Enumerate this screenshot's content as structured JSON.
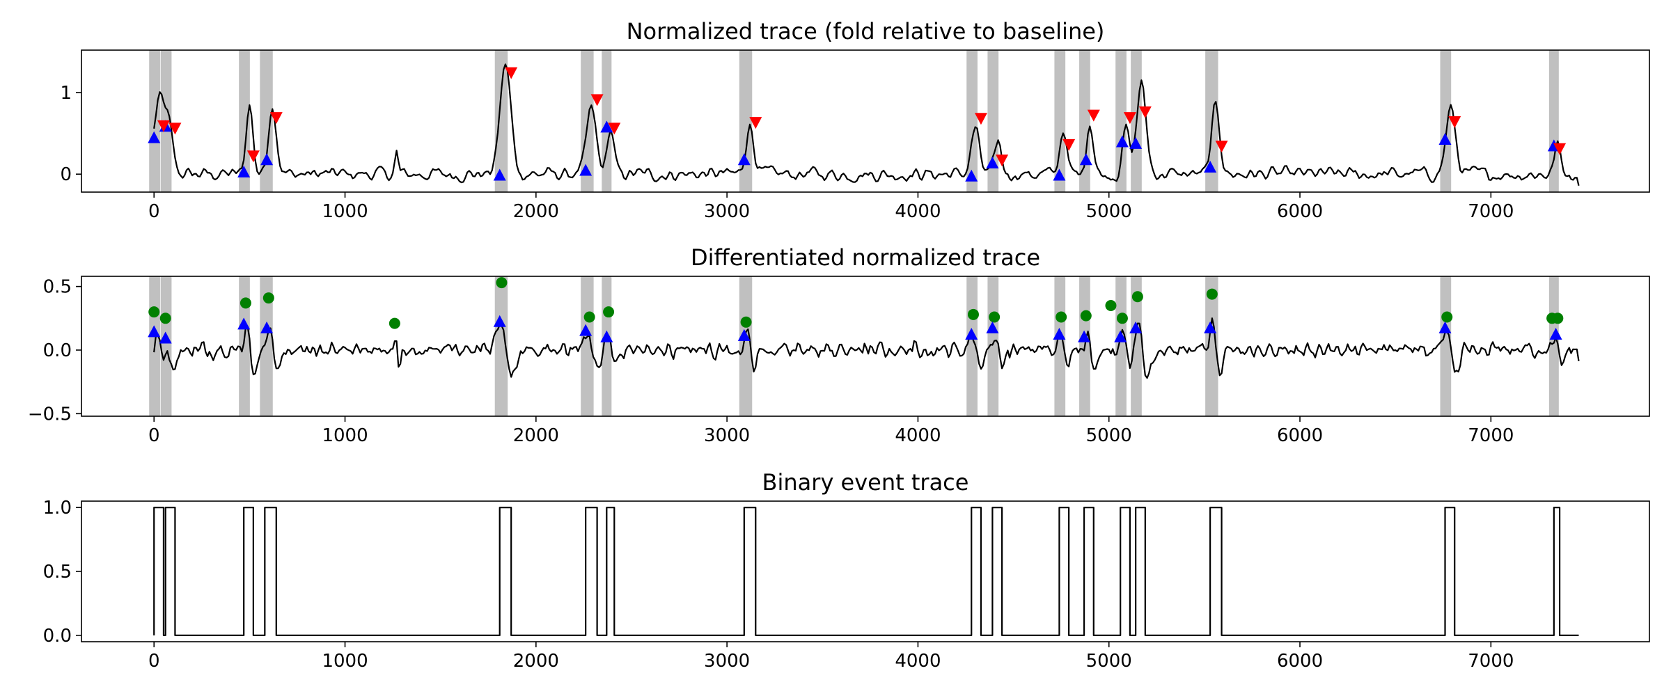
{
  "chart_data": [
    {
      "type": "line",
      "title": "Normalized trace (fold relative to baseline)",
      "xlim": [
        -380,
        7830
      ],
      "ylim": [
        -0.22,
        1.52
      ],
      "xticks": [
        0,
        1000,
        2000,
        3000,
        4000,
        5000,
        6000,
        7000
      ],
      "yticks": [
        0,
        1
      ],
      "xticklabels": [
        "0",
        "1000",
        "2000",
        "3000",
        "4000",
        "5000",
        "6000",
        "7000"
      ],
      "yticklabels": [
        "0",
        "1"
      ],
      "colors": {
        "line": "#000000",
        "band": "#c0c0c0",
        "onset": "#0000ff",
        "offset": "#ff0000"
      },
      "event_windows": [
        [
          0,
          50
        ],
        [
          60,
          110
        ],
        [
          470,
          520
        ],
        [
          580,
          640
        ],
        [
          1810,
          1870
        ],
        [
          2260,
          2320
        ],
        [
          2370,
          2410
        ],
        [
          3090,
          3150
        ],
        [
          4280,
          4330
        ],
        [
          4390,
          4440
        ],
        [
          4740,
          4790
        ],
        [
          4870,
          4920
        ],
        [
          5060,
          5110
        ],
        [
          5140,
          5190
        ],
        [
          5530,
          5590
        ],
        [
          6760,
          6810
        ],
        [
          7330,
          7360
        ]
      ],
      "series": [
        {
          "marker": "triangle-up",
          "color": "#0000ff",
          "points": [
            [
              0,
              0.44
            ],
            [
              60,
              0.58
            ],
            [
              470,
              0.02
            ],
            [
              590,
              0.17
            ],
            [
              1810,
              -0.02
            ],
            [
              2260,
              0.04
            ],
            [
              2370,
              0.57
            ],
            [
              3090,
              0.17
            ],
            [
              4280,
              -0.03
            ],
            [
              4390,
              0.13
            ],
            [
              4740,
              -0.02
            ],
            [
              4880,
              0.17
            ],
            [
              5070,
              0.39
            ],
            [
              5140,
              0.37
            ],
            [
              5530,
              0.08
            ],
            [
              6760,
              0.42
            ],
            [
              7330,
              0.34
            ]
          ]
        },
        {
          "marker": "triangle-down",
          "color": "#ff0000",
          "points": [
            [
              50,
              0.6
            ],
            [
              110,
              0.57
            ],
            [
              520,
              0.23
            ],
            [
              640,
              0.7
            ],
            [
              1870,
              1.25
            ],
            [
              2320,
              0.92
            ],
            [
              2410,
              0.57
            ],
            [
              3150,
              0.64
            ],
            [
              4330,
              0.69
            ],
            [
              4440,
              0.18
            ],
            [
              4790,
              0.37
            ],
            [
              4920,
              0.73
            ],
            [
              5110,
              0.7
            ],
            [
              5190,
              0.77
            ],
            [
              5590,
              0.35
            ],
            [
              6810,
              0.65
            ],
            [
              7360,
              0.32
            ]
          ]
        }
      ]
    },
    {
      "type": "line",
      "title": "Differentiated normalized trace",
      "xlim": [
        -380,
        7830
      ],
      "ylim": [
        -0.52,
        0.58
      ],
      "xticks": [
        0,
        1000,
        2000,
        3000,
        4000,
        5000,
        6000,
        7000
      ],
      "yticks": [
        -0.5,
        0.0,
        0.5
      ],
      "xticklabels": [
        "0",
        "1000",
        "2000",
        "3000",
        "4000",
        "5000",
        "6000",
        "7000"
      ],
      "yticklabels": [
        "−0.5",
        "0.0",
        "0.5"
      ],
      "colors": {
        "line": "#000000",
        "band": "#c0c0c0",
        "peak": "#008000",
        "onset": "#0000ff"
      },
      "event_windows": [
        [
          0,
          50
        ],
        [
          60,
          110
        ],
        [
          470,
          520
        ],
        [
          580,
          640
        ],
        [
          1810,
          1870
        ],
        [
          2260,
          2320
        ],
        [
          2370,
          2410
        ],
        [
          3090,
          3150
        ],
        [
          4280,
          4330
        ],
        [
          4390,
          4440
        ],
        [
          4740,
          4790
        ],
        [
          4870,
          4920
        ],
        [
          5060,
          5110
        ],
        [
          5140,
          5190
        ],
        [
          5530,
          5590
        ],
        [
          6760,
          6810
        ],
        [
          7330,
          7360
        ]
      ],
      "series": [
        {
          "marker": "circle",
          "color": "#008000",
          "points": [
            [
              0,
              0.3
            ],
            [
              60,
              0.25
            ],
            [
              480,
              0.37
            ],
            [
              600,
              0.41
            ],
            [
              1260,
              0.21
            ],
            [
              1820,
              0.53
            ],
            [
              2280,
              0.26
            ],
            [
              2380,
              0.3
            ],
            [
              3100,
              0.22
            ],
            [
              4290,
              0.28
            ],
            [
              4400,
              0.26
            ],
            [
              4750,
              0.26
            ],
            [
              4880,
              0.27
            ],
            [
              5010,
              0.35
            ],
            [
              5070,
              0.25
            ],
            [
              5150,
              0.42
            ],
            [
              5540,
              0.44
            ],
            [
              6770,
              0.26
            ],
            [
              7320,
              0.25
            ],
            [
              7350,
              0.25
            ]
          ]
        },
        {
          "marker": "triangle-up",
          "color": "#0000ff",
          "points": [
            [
              0,
              0.14
            ],
            [
              60,
              0.09
            ],
            [
              470,
              0.2
            ],
            [
              590,
              0.17
            ],
            [
              1810,
              0.22
            ],
            [
              2260,
              0.15
            ],
            [
              2370,
              0.1
            ],
            [
              3090,
              0.11
            ],
            [
              4280,
              0.12
            ],
            [
              4390,
              0.17
            ],
            [
              4740,
              0.12
            ],
            [
              4870,
              0.1
            ],
            [
              5060,
              0.1
            ],
            [
              5140,
              0.17
            ],
            [
              5530,
              0.17
            ],
            [
              6760,
              0.17
            ],
            [
              7340,
              0.12
            ]
          ]
        }
      ]
    },
    {
      "type": "line",
      "title": "Binary event trace",
      "xlim": [
        -380,
        7830
      ],
      "ylim": [
        -0.05,
        1.05
      ],
      "xticks": [
        0,
        1000,
        2000,
        3000,
        4000,
        5000,
        6000,
        7000
      ],
      "yticks": [
        0.0,
        0.5,
        1.0
      ],
      "xticklabels": [
        "0",
        "1000",
        "2000",
        "3000",
        "4000",
        "5000",
        "6000",
        "7000"
      ],
      "yticklabels": [
        "0.0",
        "0.5",
        "1.0"
      ],
      "colors": {
        "line": "#000000"
      },
      "event_windows": [
        [
          0,
          50
        ],
        [
          60,
          110
        ],
        [
          470,
          520
        ],
        [
          580,
          640
        ],
        [
          1810,
          1870
        ],
        [
          2260,
          2320
        ],
        [
          2370,
          2410
        ],
        [
          3090,
          3150
        ],
        [
          4280,
          4330
        ],
        [
          4390,
          4440
        ],
        [
          4740,
          4790
        ],
        [
          4870,
          4920
        ],
        [
          5060,
          5110
        ],
        [
          5140,
          5190
        ],
        [
          5530,
          5590
        ],
        [
          6760,
          6810
        ],
        [
          7330,
          7360
        ]
      ],
      "x_end": 7460
    }
  ]
}
